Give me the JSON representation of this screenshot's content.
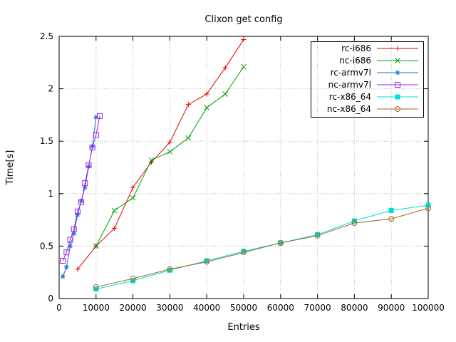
{
  "chart_data": {
    "type": "line",
    "title": "Clixon get config",
    "xlabel": "Entries",
    "ylabel": "Time[s]",
    "xlim": [
      0,
      100000
    ],
    "ylim": [
      0,
      2.5
    ],
    "xticks": [
      0,
      10000,
      20000,
      30000,
      40000,
      50000,
      60000,
      70000,
      80000,
      90000,
      100000
    ],
    "yticks": [
      0,
      0.5,
      1,
      1.5,
      2,
      2.5
    ],
    "grid": true,
    "legend_position": "top-right-inside",
    "series": [
      {
        "name": "rc-i686",
        "color": "#e60000",
        "marker": "plus",
        "points": [
          [
            5000,
            0.28
          ],
          [
            10000,
            0.5
          ],
          [
            15000,
            0.67
          ],
          [
            20000,
            1.06
          ],
          [
            25000,
            1.3
          ],
          [
            30000,
            1.49
          ],
          [
            35000,
            1.85
          ],
          [
            40000,
            1.95
          ],
          [
            45000,
            2.2
          ],
          [
            50000,
            2.47
          ]
        ]
      },
      {
        "name": "nc-i686",
        "color": "#00a000",
        "marker": "cross",
        "points": [
          [
            10000,
            0.5
          ],
          [
            15000,
            0.84
          ],
          [
            20000,
            0.96
          ],
          [
            25000,
            1.32
          ],
          [
            30000,
            1.4
          ],
          [
            35000,
            1.53
          ],
          [
            40000,
            1.82
          ],
          [
            45000,
            1.95
          ],
          [
            50000,
            2.21
          ]
        ]
      },
      {
        "name": "rc-armv7l",
        "color": "#1874d2",
        "marker": "asterisk",
        "points": [
          [
            1000,
            0.21
          ],
          [
            2000,
            0.3
          ],
          [
            3000,
            0.5
          ],
          [
            4000,
            0.62
          ],
          [
            5000,
            0.8
          ],
          [
            6000,
            0.93
          ],
          [
            7000,
            1.06
          ],
          [
            8000,
            1.26
          ],
          [
            9000,
            1.45
          ],
          [
            10000,
            1.73
          ]
        ]
      },
      {
        "name": "nc-armv7l",
        "color": "#a020f0",
        "marker": "square-open",
        "points": [
          [
            1000,
            0.36
          ],
          [
            2000,
            0.44
          ],
          [
            3000,
            0.56
          ],
          [
            4000,
            0.66
          ],
          [
            5000,
            0.83
          ],
          [
            6000,
            0.92
          ],
          [
            7000,
            1.1
          ],
          [
            8000,
            1.27
          ],
          [
            9000,
            1.44
          ],
          [
            10000,
            1.56
          ],
          [
            11000,
            1.74
          ]
        ]
      },
      {
        "name": "rc-x86_64",
        "color": "#00dddd",
        "marker": "square-filled",
        "points": [
          [
            10000,
            0.09
          ],
          [
            20000,
            0.17
          ],
          [
            30000,
            0.27
          ],
          [
            40000,
            0.36
          ],
          [
            50000,
            0.45
          ],
          [
            60000,
            0.53
          ],
          [
            70000,
            0.61
          ],
          [
            80000,
            0.74
          ],
          [
            90000,
            0.84
          ],
          [
            100000,
            0.89
          ]
        ]
      },
      {
        "name": "nc-x86_64",
        "color": "#a0691f",
        "marker": "circle-open",
        "points": [
          [
            10000,
            0.11
          ],
          [
            20000,
            0.19
          ],
          [
            30000,
            0.28
          ],
          [
            40000,
            0.35
          ],
          [
            50000,
            0.44
          ],
          [
            60000,
            0.53
          ],
          [
            70000,
            0.6
          ],
          [
            80000,
            0.72
          ],
          [
            90000,
            0.76
          ],
          [
            100000,
            0.86
          ]
        ]
      }
    ]
  }
}
